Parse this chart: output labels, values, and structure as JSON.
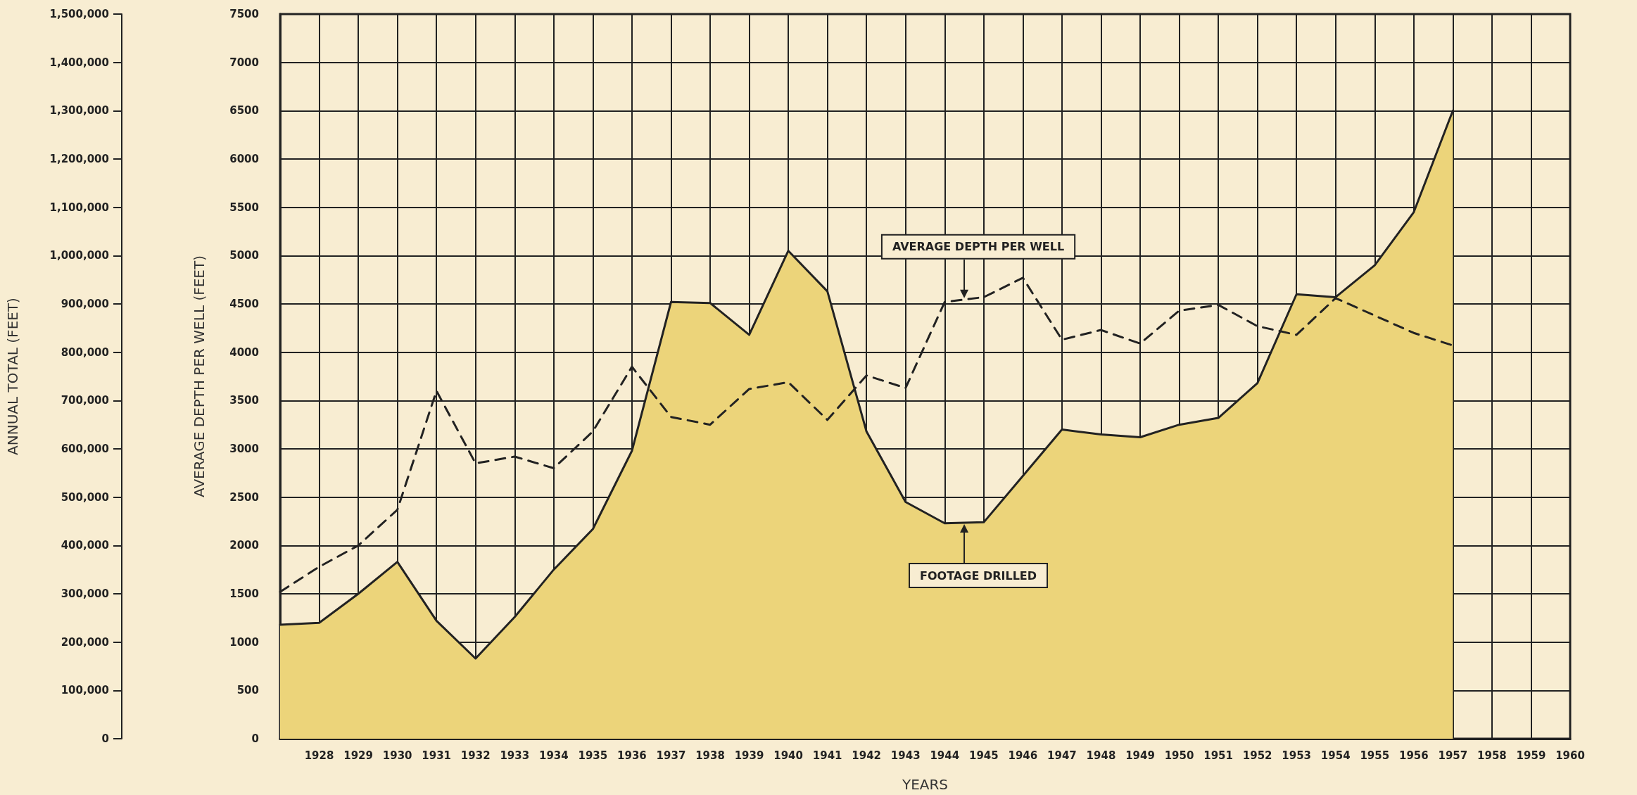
{
  "chart_data": {
    "type": "line",
    "xlabel": "YEARS",
    "ylabel": "AVERAGE DEPTH PER WELL (FEET)",
    "y2label": "ANNUAL TOTAL (FEET)",
    "x": [
      1927,
      1928,
      1929,
      1930,
      1931,
      1932,
      1933,
      1934,
      1935,
      1936,
      1937,
      1938,
      1939,
      1940,
      1941,
      1942,
      1943,
      1944,
      1945,
      1946,
      1947,
      1948,
      1949,
      1950,
      1951,
      1952,
      1953,
      1954,
      1955,
      1956,
      1957
    ],
    "series": [
      {
        "name": "FOOTAGE DRILLED",
        "type": "area",
        "axis": "y2",
        "color": "#ecd47a",
        "line_style": "solid",
        "values": [
          236000,
          240000,
          300000,
          366000,
          244000,
          166000,
          252000,
          350000,
          434000,
          596000,
          904000,
          902000,
          836000,
          1010000,
          926000,
          636000,
          490000,
          446000,
          448000,
          544000,
          640000,
          630000,
          624000,
          650000,
          664000,
          736000,
          920000,
          914000,
          980000,
          1090000,
          1300000
        ]
      },
      {
        "name": "AVERAGE DEPTH PER WELL",
        "color": "#222222",
        "line_style": "dashed",
        "values": [
          1520,
          1780,
          2000,
          2370,
          3600,
          2850,
          2920,
          2800,
          3180,
          3850,
          3330,
          3250,
          3620,
          3690,
          3300,
          3760,
          3630,
          4520,
          4570,
          4770,
          4130,
          4230,
          4090,
          4430,
          4490,
          4270,
          4180,
          4560,
          4380,
          4200,
          4070
        ]
      }
    ],
    "xlim": [
      1927,
      1960
    ],
    "xticks": [
      1928,
      1929,
      1930,
      1931,
      1932,
      1933,
      1934,
      1935,
      1936,
      1937,
      1938,
      1939,
      1940,
      1941,
      1942,
      1943,
      1944,
      1945,
      1946,
      1947,
      1948,
      1949,
      1950,
      1951,
      1952,
      1953,
      1954,
      1955,
      1956,
      1957,
      1958,
      1959,
      1960
    ],
    "ylim": [
      0,
      7500
    ],
    "yticks": [
      0,
      500,
      1000,
      1500,
      2000,
      2500,
      3000,
      3500,
      4000,
      4500,
      5000,
      5500,
      6000,
      6500,
      7000,
      7500
    ],
    "y2lim": [
      0,
      1500000
    ],
    "y2ticks": [
      0,
      {
        "value": 100000,
        "label": "100,000"
      },
      {
        "value": 200000,
        "label": "200,000"
      },
      {
        "value": 300000,
        "label": "300,000"
      },
      {
        "value": 400000,
        "label": "400,000"
      },
      {
        "value": 500000,
        "label": "500,000"
      },
      {
        "value": 600000,
        "label": "600,000"
      },
      {
        "value": 700000,
        "label": "700,000"
      },
      {
        "value": 800000,
        "label": "800,000"
      },
      {
        "value": 900000,
        "label": "900,000"
      },
      {
        "value": 1000000,
        "label": "1,000,000"
      },
      {
        "value": 1100000,
        "label": "1,100,000"
      },
      {
        "value": 1200000,
        "label": "1,200,000"
      },
      {
        "value": 1300000,
        "label": "1,300,000"
      },
      {
        "value": 1400000,
        "label": "1,400,000"
      },
      {
        "value": 1500000,
        "label": "1,500,000"
      }
    ],
    "grid": true,
    "marker": "none",
    "legend": false
  }
}
